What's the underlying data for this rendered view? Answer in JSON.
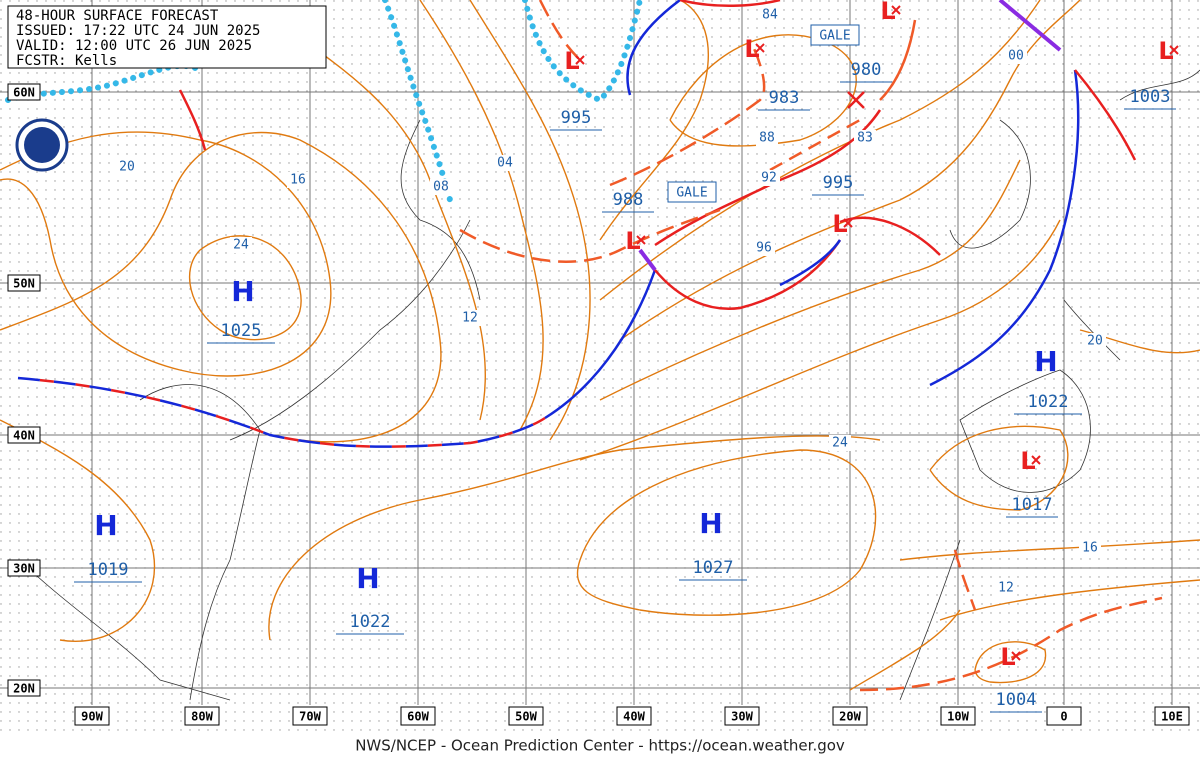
{
  "header": {
    "lines": [
      "48-HOUR SURFACE FORECAST",
      "ISSUED: 17:22 UTC 24 JUN 2025",
      "VALID:  12:00 UTC 26 JUN 2025",
      "FCSTR:  Kells"
    ]
  },
  "latitude_labels": [
    "60N",
    "50N",
    "40N",
    "30N",
    "20N"
  ],
  "longitude_labels": [
    "90W",
    "80W",
    "70W",
    "60W",
    "50W",
    "40W",
    "30W",
    "20W",
    "10W",
    "0",
    "10E"
  ],
  "high_symbol": "H",
  "low_symbol": "L",
  "highs": [
    1025,
    1022,
    1027,
    1019,
    1022
  ],
  "lows": [
    995,
    983,
    988,
    995,
    1003,
    1017,
    1004,
    980
  ],
  "isobar_labels": [
    "20",
    "16",
    "24",
    "12",
    "08",
    "04",
    "84",
    "88",
    "92",
    "96",
    "83",
    "00",
    "20",
    "24",
    "16",
    "12"
  ],
  "warnings": [
    "GALE",
    "GALE"
  ],
  "footer": "NWS/NCEP - Ocean Prediction Center - https://ocean.weather.gov"
}
